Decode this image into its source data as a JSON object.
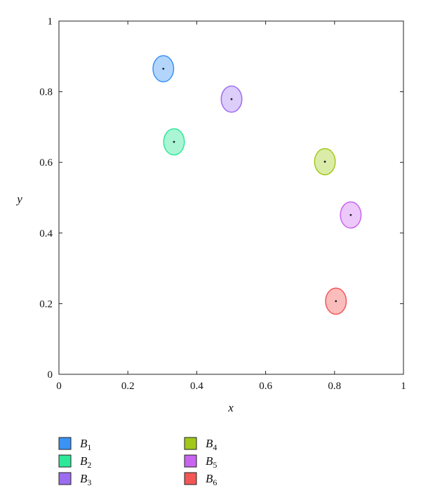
{
  "chart_data": {
    "type": "scatter",
    "title": "",
    "xlabel": "x",
    "ylabel": "y",
    "xlim": [
      0,
      1
    ],
    "ylim": [
      0,
      1
    ],
    "grid": false,
    "xticks": [
      "0",
      "0.2",
      "0.4",
      "0.6",
      "0.8",
      "1"
    ],
    "yticks": [
      "0",
      "0.2",
      "0.4",
      "0.6",
      "0.8",
      "1"
    ],
    "legend_placement": "bottom",
    "ellipse_radius": {
      "rx": 0.03,
      "ry": 0.037
    },
    "series": [
      {
        "name": "B",
        "sub": "1",
        "x": 0.303,
        "y": 0.865,
        "color": "#3a93f5",
        "fill": "#b3d5fb"
      },
      {
        "name": "B",
        "sub": "2",
        "x": 0.334,
        "y": 0.658,
        "color": "#2ee89a",
        "fill": "#aaf6d4"
      },
      {
        "name": "B",
        "sub": "3",
        "x": 0.501,
        "y": 0.779,
        "color": "#9c6cf0",
        "fill": "#dccdfa"
      },
      {
        "name": "B",
        "sub": "4",
        "x": 0.772,
        "y": 0.602,
        "color": "#a2c81a",
        "fill": "#dbeca8"
      },
      {
        "name": "B",
        "sub": "5",
        "x": 0.847,
        "y": 0.451,
        "color": "#c865f0",
        "fill": "#edc8fa"
      },
      {
        "name": "B",
        "sub": "6",
        "x": 0.804,
        "y": 0.207,
        "color": "#f25656",
        "fill": "#fbbcbc"
      }
    ]
  }
}
